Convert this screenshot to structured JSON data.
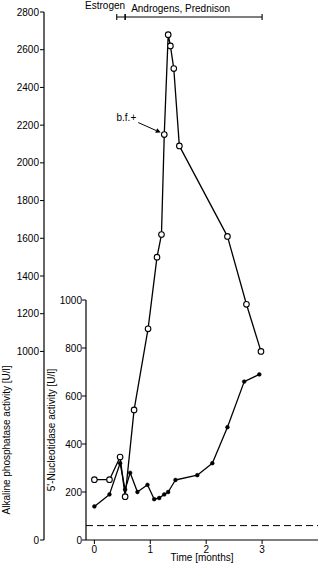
{
  "chart_data": {
    "type": "line",
    "xlabel": "Time [months]",
    "ylabel": "Alkaline phosphatase activity [U/l]",
    "y2label": "5'-Nucleotidase activity [U/l]",
    "xlim": [
      -0.15,
      4
    ],
    "xticks": [
      0,
      1,
      2,
      3
    ],
    "ylim": [
      0,
      2800
    ],
    "yticks": [
      0,
      1000,
      1200,
      1400,
      1600,
      1800,
      2000,
      2200,
      2400,
      2600,
      2800
    ],
    "y2lim": [
      0,
      1000
    ],
    "y2ticks": [
      0,
      200,
      400,
      600,
      800,
      1000
    ],
    "series": [
      {
        "color": "#000000",
        "marker": "open_circle",
        "x": [
          0,
          0.27,
          0.46,
          0.55,
          0.71,
          0.96,
          1.12,
          1.2,
          1.25,
          1.32,
          1.36,
          1.42,
          1.52,
          2.38,
          2.72,
          2.98
        ],
        "values": [
          320,
          320,
          440,
          230,
          690,
          1120,
          1500,
          1620,
          2150,
          2680,
          2620,
          2500,
          2090,
          1610,
          1250,
          1000
        ]
      },
      {
        "color": "#000000",
        "marker": "dot",
        "axis": "y2",
        "x": [
          0,
          0.27,
          0.46,
          0.55,
          0.64,
          0.77,
          0.95,
          1.07,
          1.16,
          1.25,
          1.32,
          1.45,
          1.84,
          2.11,
          2.38,
          2.68,
          2.95
        ],
        "values": [
          140,
          190,
          320,
          210,
          280,
          200,
          230,
          170,
          175,
          190,
          200,
          250,
          270,
          320,
          470,
          660,
          690
        ]
      }
    ],
    "annotations": [
      {
        "text": "b.f.+",
        "x": 1.25,
        "y": 2150
      }
    ],
    "periods": [
      {
        "label": "Estrogen",
        "start": 0.4,
        "end": 0.55
      },
      {
        "label": "Androgens, Prednison",
        "start": 0.55,
        "end": 3
      }
    ],
    "hlines": [
      {
        "value": 60,
        "axis": "y2",
        "line_style": "dashed"
      }
    ]
  }
}
